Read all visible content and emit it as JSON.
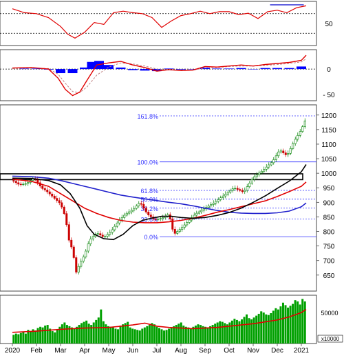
{
  "colors": {
    "panel_border": "#444444",
    "rsi_line": "#e00000",
    "rsi_trend": "#0000cc",
    "macd_line": "#e00000",
    "macd_signal": "#c08080",
    "macd_hist": "#0000ff",
    "candle_up": "#008000",
    "candle_down": "#cc0000",
    "ma_fast": "#e00000",
    "ma_mid": "#000000",
    "ma_slow": "#2020cc",
    "fib": "#3030ff",
    "volume_bar": "#00a000",
    "volume_ma": "#e00000",
    "zone_fill": "#ffffff"
  },
  "chart_data": [
    {
      "type": "line",
      "panel": "rsi",
      "ylim": [
        5,
        95
      ],
      "ytick_labels": [
        "50"
      ],
      "yticks": [
        50
      ],
      "guides": [
        70,
        30
      ],
      "months": [
        "2020",
        "Feb",
        "Mar",
        "Apr",
        "May",
        "Jun",
        "Jul",
        "Aug",
        "Sep",
        "Oct",
        "Nov",
        "Dec",
        "2021"
      ],
      "series": [
        {
          "x": [
            0,
            0.5,
            1,
            1.5,
            2,
            2.3,
            2.6,
            3,
            3.4,
            3.8,
            4.2,
            4.6,
            5,
            5.4,
            5.8,
            6.2,
            6.6,
            7,
            7.4,
            7.8,
            8.2,
            8.6,
            9,
            9.4,
            9.8,
            10.2,
            10.6,
            11,
            11.4,
            11.8,
            12.2
          ],
          "y": [
            80,
            72,
            70,
            62,
            44,
            28,
            20,
            32,
            52,
            48,
            72,
            75,
            72,
            70,
            62,
            42,
            55,
            66,
            70,
            75,
            70,
            74,
            74,
            68,
            71,
            60,
            74,
            77,
            72,
            82,
            86
          ]
        }
      ],
      "trendline": {
        "x": [
          10.7,
          12.1
        ],
        "y": [
          88,
          88
        ]
      }
    },
    {
      "type": "bar",
      "panel": "macd",
      "ylim": [
        -62,
        38
      ],
      "ytick_labels": [
        "0",
        "- 50"
      ],
      "yticks": [
        0,
        -50
      ],
      "series": [
        {
          "kind": "line",
          "x": [
            0,
            0.8,
            1.5,
            1.9,
            2.2,
            2.5,
            2.8,
            3.1,
            3.5,
            4,
            4.5,
            5,
            5.5,
            6,
            6.5,
            7,
            7.5,
            8,
            8.5,
            9,
            9.5,
            10,
            10.5,
            11,
            11.5,
            12,
            12.2
          ],
          "y": [
            2,
            3,
            0,
            -18,
            -40,
            -52,
            -45,
            -22,
            8,
            12,
            15,
            8,
            3,
            -4,
            -1,
            -3,
            -2,
            5,
            4,
            6,
            8,
            6,
            9,
            11,
            13,
            17,
            27
          ]
        },
        {
          "kind": "line",
          "x": [
            0,
            0.8,
            1.5,
            1.9,
            2.2,
            2.5,
            2.8,
            3.1,
            3.5,
            4,
            4.5,
            5,
            5.5,
            6,
            6.5,
            7,
            7.5,
            8,
            8.5,
            9,
            9.5,
            10,
            10.5,
            11,
            11.5,
            12,
            12.2
          ],
          "y": [
            1,
            2,
            1,
            -10,
            -28,
            -44,
            -46,
            -35,
            -12,
            4,
            12,
            10,
            6,
            0,
            -2,
            -2,
            -2,
            2,
            3,
            5,
            6,
            6,
            7,
            9,
            11,
            14,
            20
          ]
        },
        {
          "kind": "histogram",
          "x": [
            0.5,
            1,
            1.5,
            2,
            2.5,
            3,
            3.3,
            3.6,
            4,
            4.5,
            5,
            5.5,
            6,
            6.5,
            7,
            7.5,
            8,
            8.5,
            9,
            9.5,
            10,
            10.5,
            11,
            11.5,
            12
          ],
          "y": [
            1,
            1,
            -1,
            -8,
            -8,
            3,
            14,
            16,
            8,
            3,
            -2,
            -3,
            -4,
            1,
            -1,
            0,
            3,
            1,
            1,
            2,
            0,
            2,
            2,
            2,
            5
          ]
        }
      ]
    },
    {
      "type": "line",
      "panel": "price",
      "ylim": [
        595,
        1235
      ],
      "yticks": [
        650,
        700,
        750,
        800,
        850,
        900,
        950,
        1000,
        1050,
        1100,
        1150,
        1200
      ],
      "ytick_labels": [
        "650",
        "700",
        "750",
        "800",
        "850",
        "900",
        "950",
        "1000",
        "1050",
        "1100",
        "1150",
        "1200"
      ],
      "fib_levels": [
        {
          "label": "161.8%",
          "value": 1197
        },
        {
          "label": "100.0%",
          "value": 1039
        },
        {
          "label": "61.8%",
          "value": 941
        },
        {
          "label": "50.0%",
          "value": 911
        },
        {
          "label": "38.2%",
          "value": 880
        },
        {
          "label": "23.6%",
          "value": 843
        },
        {
          "label": "0.0%",
          "value": 782
        }
      ],
      "resistance_zone": [
        978,
        998
      ],
      "close": {
        "x": [
          0,
          0.3,
          0.6,
          0.9,
          1.2,
          1.4,
          1.6,
          1.8,
          2.0,
          2.2,
          2.35,
          2.5,
          2.65,
          2.8,
          3.0,
          3.2,
          3.5,
          3.8,
          4.1,
          4.4,
          4.7,
          5.0,
          5.3,
          5.6,
          5.9,
          6.2,
          6.5,
          6.7,
          7.0,
          7.3,
          7.6,
          8.0,
          8.4,
          8.8,
          9.2,
          9.6,
          10.0,
          10.4,
          10.8,
          11.1,
          11.4,
          11.7,
          12.0,
          12.2
        ],
        "y": [
          975,
          960,
          965,
          985,
          950,
          940,
          925,
          910,
          895,
          850,
          770,
          735,
          660,
          690,
          720,
          770,
          795,
          780,
          800,
          835,
          860,
          875,
          900,
          860,
          840,
          845,
          860,
          790,
          810,
          835,
          860,
          880,
          900,
          925,
          950,
          935,
          985,
          1010,
          1040,
          1080,
          1060,
          1110,
          1150,
          1190
        ]
      },
      "ma_fast": {
        "x": [
          0,
          0.8,
          1.5,
          2.0,
          2.5,
          3.0,
          3.5,
          4.0,
          4.5,
          5.0,
          5.5,
          6.0,
          6.5,
          7.0,
          7.5,
          8.0,
          8.5,
          9.0,
          9.5,
          10.0,
          10.5,
          11.0,
          11.5,
          12.0,
          12.2
        ],
        "y": [
          980,
          972,
          955,
          930,
          905,
          880,
          862,
          848,
          838,
          832,
          830,
          830,
          833,
          838,
          845,
          855,
          866,
          875,
          885,
          895,
          905,
          920,
          937,
          955,
          970
        ]
      },
      "ma_mid": {
        "x": [
          0,
          0.8,
          1.5,
          2.0,
          2.4,
          2.8,
          3.1,
          3.4,
          3.8,
          4.2,
          4.6,
          5.0,
          5.4,
          5.8,
          6.2,
          6.6,
          7.0,
          7.5,
          8.0,
          8.5,
          9.0,
          9.5,
          10.0,
          10.5,
          11.0,
          11.5,
          12.0,
          12.2
        ],
        "y": [
          983,
          982,
          975,
          960,
          930,
          880,
          820,
          790,
          775,
          772,
          790,
          820,
          838,
          846,
          852,
          852,
          848,
          845,
          848,
          855,
          865,
          880,
          900,
          922,
          948,
          973,
          1005,
          1030
        ]
      },
      "ma_slow": {
        "x": [
          0,
          0.8,
          1.5,
          2.0,
          2.5,
          3.0,
          3.5,
          4.0,
          4.5,
          5.0,
          5.5,
          6.0,
          6.5,
          7.0,
          7.5,
          8.0,
          8.5,
          9.0,
          9.5,
          10.0,
          10.5,
          11.0,
          11.5,
          12.0,
          12.2
        ],
        "y": [
          990,
          988,
          983,
          975,
          965,
          955,
          945,
          935,
          925,
          918,
          912,
          906,
          900,
          895,
          888,
          880,
          872,
          866,
          863,
          862,
          862,
          864,
          870,
          885,
          898
        ]
      }
    },
    {
      "type": "bar",
      "panel": "volume",
      "ylim": [
        0,
        78000
      ],
      "yticks": [
        50000
      ],
      "ytick_labels": [
        "50000"
      ],
      "unit_label": "x10000",
      "values": [
        14000,
        16000,
        15000,
        17000,
        19000,
        16000,
        22000,
        20000,
        23000,
        21000,
        25000,
        27000,
        26000,
        29000,
        30000,
        24000,
        20000,
        18000,
        22000,
        27000,
        31000,
        34000,
        30000,
        28000,
        26000,
        24000,
        27000,
        30000,
        33000,
        35000,
        37000,
        32000,
        30000,
        34000,
        38000,
        42000,
        55000,
        36000,
        31000,
        28000,
        27000,
        26000,
        24000,
        23000,
        29000,
        31000,
        33000,
        35000,
        26000,
        24000,
        23000,
        22000,
        21000,
        24000,
        26000,
        28000,
        30000,
        33000,
        31000,
        27000,
        25000,
        23000,
        21000,
        22000,
        24000,
        26000,
        28000,
        30000,
        32000,
        34000,
        29000,
        27000,
        26000,
        25000,
        27000,
        29000,
        31000,
        30000,
        28000,
        27000,
        26000,
        28000,
        30000,
        32000,
        34000,
        36000,
        35000,
        33000,
        31000,
        34000,
        37000,
        40000,
        38000,
        36000,
        39000,
        43000,
        47000,
        41000,
        39000,
        42000,
        45000,
        48000,
        52000,
        50000,
        47000,
        46000,
        49000,
        53000,
        57000,
        55000,
        60000,
        66000,
        62000,
        58000,
        61000,
        64000,
        70000,
        68000,
        63000,
        72000,
        68000
      ],
      "ma_x": [
        0,
        1,
        2,
        3,
        4,
        4.5,
        5,
        5.5,
        6,
        6.5,
        7,
        7.5,
        8,
        8.5,
        9,
        9.5,
        10,
        10.5,
        11,
        11.5,
        12,
        12.2
      ],
      "ma_y": [
        18000,
        20000,
        23000,
        25000,
        26000,
        28000,
        30000,
        33000,
        28000,
        26000,
        25000,
        24000,
        25000,
        26000,
        28000,
        30000,
        32000,
        35000,
        38000,
        43000,
        50000,
        55000
      ]
    }
  ]
}
